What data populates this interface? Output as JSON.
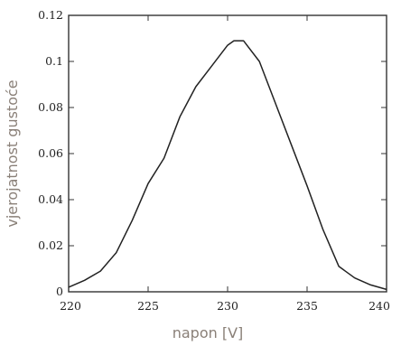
{
  "chart_data": {
    "type": "line",
    "title": "",
    "xlabel": "napon [V]",
    "ylabel": "vjerojatnost gustoće",
    "xlim": [
      220,
      240
    ],
    "ylim": [
      0,
      0.12
    ],
    "x_ticks": [
      "220",
      "225",
      "230",
      "235",
      "240"
    ],
    "y_ticks": [
      "0",
      "0.02",
      "0.04",
      "0.06",
      "0.08",
      "0.1",
      "0.12"
    ],
    "grid": false,
    "legend": "none",
    "series": [
      {
        "x": [
          220,
          221,
          222,
          223,
          224,
          225,
          226,
          227,
          228,
          229,
          230,
          230.4,
          231,
          232,
          233,
          234,
          235,
          236,
          237,
          238,
          239,
          240
        ],
        "y": [
          0.002,
          0.005,
          0.009,
          0.017,
          0.031,
          0.047,
          0.058,
          0.076,
          0.089,
          0.098,
          0.107,
          0.109,
          0.109,
          0.1,
          0.082,
          0.064,
          0.046,
          0.027,
          0.011,
          0.006,
          0.003,
          0.001
        ]
      }
    ],
    "line_color": "#222222"
  }
}
